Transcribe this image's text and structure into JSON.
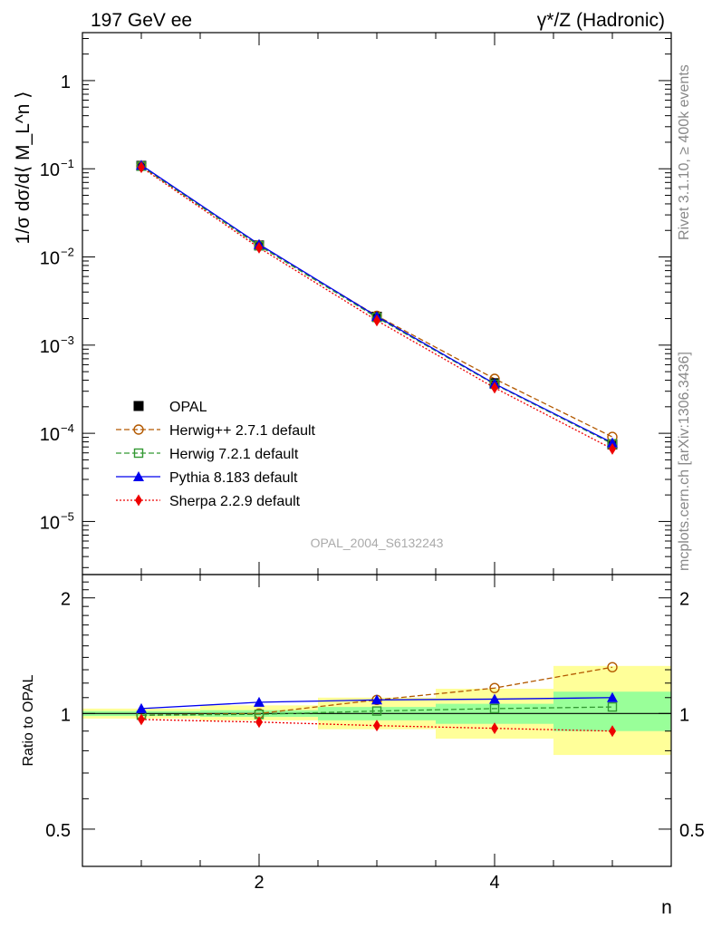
{
  "header": {
    "left": "197 GeV ee",
    "right": "γ*/Z (Hadronic)"
  },
  "side_labels": {
    "rivet": "Rivet 3.1.10, ≥ 400k events",
    "mcplots": "mcplots.cern.ch [arXiv:1306.3436]"
  },
  "watermark": "OPAL_2004_S6132243",
  "colors": {
    "opal": "#000000",
    "herwigpp": "#b35900",
    "herwig7": "#339933",
    "pythia": "#0000ee",
    "sherpa": "#ee0000",
    "band_total": "#ffff99",
    "band_stat": "#99ff99"
  },
  "chart_data": [
    {
      "type": "line",
      "panel": "main",
      "title": "",
      "ylabel": "1/σ dσ/d⟨ M_L^n ⟩",
      "yscale": "log",
      "ylim": [
        2.5e-06,
        3.5
      ],
      "xlim": [
        0.5,
        5.5
      ],
      "ytick_labels": [
        {
          "base": "1",
          "exp": ""
        },
        {
          "base": "10",
          "exp": "−1"
        },
        {
          "base": "10",
          "exp": "−2"
        },
        {
          "base": "10",
          "exp": "−3"
        },
        {
          "base": "10",
          "exp": "−4"
        },
        {
          "base": "10",
          "exp": "−5"
        }
      ],
      "ytick_values": [
        1,
        0.1,
        0.01,
        0.001,
        0.0001,
        1e-05
      ],
      "x": [
        1,
        2,
        3,
        4,
        5
      ],
      "legend": {
        "placement": "lower-left",
        "entries": [
          "OPAL",
          "Herwig++ 2.7.1 default",
          "Herwig 7.2.1 default",
          "Pythia 8.183 default",
          "Sherpa 2.2.9 default"
        ]
      },
      "series": [
        {
          "name": "OPAL",
          "key": "opal",
          "values": [
            0.108,
            0.0135,
            0.0021,
            0.00037,
            7.5e-05
          ]
        },
        {
          "name": "Herwig++ 2.7.1 default",
          "key": "herwigpp",
          "values": [
            0.107,
            0.0135,
            0.00215,
            0.000415,
            9.1e-05
          ]
        },
        {
          "name": "Herwig 7.2.1 default",
          "key": "herwig7",
          "values": [
            0.107,
            0.0134,
            0.00206,
            0.00036,
            7.6e-05
          ]
        },
        {
          "name": "Pythia 8.183 default",
          "key": "pythia",
          "values": [
            0.11,
            0.0139,
            0.00212,
            0.000365,
            7.8e-05
          ]
        },
        {
          "name": "Sherpa 2.2.9 default",
          "key": "sherpa",
          "values": [
            0.104,
            0.0127,
            0.0019,
            0.000328,
            6.65e-05
          ]
        }
      ]
    },
    {
      "type": "line",
      "panel": "ratio",
      "ylabel": "Ratio to OPAL",
      "xlabel": "n",
      "yscale": "log",
      "ylim": [
        0.4,
        2.3
      ],
      "xlim": [
        0.5,
        5.5
      ],
      "ytick_values": [
        0.5,
        1,
        2
      ],
      "ytick_labels": [
        "0.5",
        "1",
        "2"
      ],
      "xtick_values": [
        2,
        4
      ],
      "xtick_labels": [
        "2",
        "4"
      ],
      "x": [
        1,
        2,
        3,
        4,
        5
      ],
      "bands": {
        "edges": [
          0.5,
          1.5,
          2.5,
          3.5,
          4.5,
          5.5
        ],
        "total": [
          [
            0.97,
            1.03
          ],
          [
            0.96,
            1.05
          ],
          [
            0.91,
            1.1
          ],
          [
            0.86,
            1.16
          ],
          [
            0.78,
            1.33
          ]
        ],
        "stat": [
          [
            0.985,
            1.015
          ],
          [
            0.98,
            1.02
          ],
          [
            0.96,
            1.04
          ],
          [
            0.94,
            1.06
          ],
          [
            0.9,
            1.14
          ]
        ]
      },
      "series": [
        {
          "name": "Herwig++ 2.7.1 default",
          "key": "herwigpp",
          "values": [
            0.99,
            1.0,
            1.085,
            1.165,
            1.32
          ]
        },
        {
          "name": "Herwig 7.2.1 default",
          "key": "herwig7",
          "values": [
            0.99,
            0.995,
            1.015,
            1.03,
            1.04
          ]
        },
        {
          "name": "Pythia 8.183 default",
          "key": "pythia",
          "values": [
            1.03,
            1.07,
            1.085,
            1.09,
            1.1
          ]
        },
        {
          "name": "Sherpa 2.2.9 default",
          "key": "sherpa",
          "values": [
            0.965,
            0.95,
            0.93,
            0.915,
            0.9
          ]
        }
      ]
    }
  ]
}
